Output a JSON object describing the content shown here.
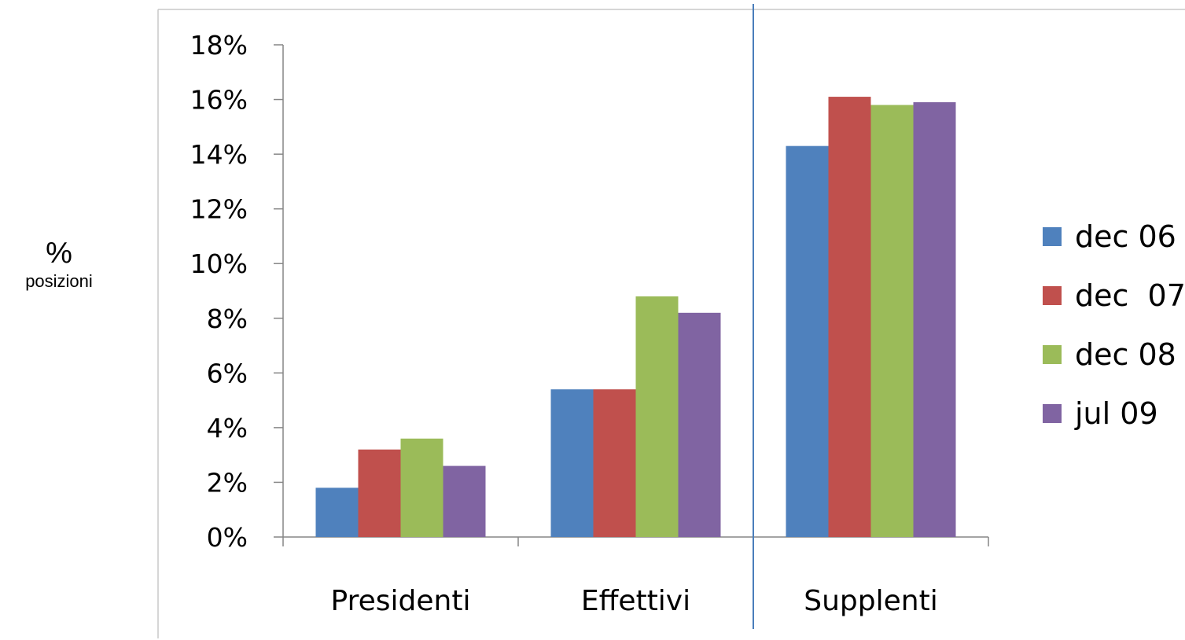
{
  "ylabel": {
    "main": "%",
    "sub": "posizioni"
  },
  "chart_data": {
    "type": "bar",
    "categories": [
      "Presidenti",
      "Effettivi",
      "Supplenti"
    ],
    "series": [
      {
        "name": "dec 06",
        "values": [
          1.8,
          5.4,
          14.3
        ]
      },
      {
        "name": "dec  07",
        "values": [
          3.2,
          5.4,
          16.1
        ]
      },
      {
        "name": "dec 08",
        "values": [
          3.6,
          8.8,
          15.8
        ]
      },
      {
        "name": "jul 09",
        "values": [
          2.6,
          8.2,
          15.9
        ]
      }
    ],
    "colors": [
      "#4F81BD",
      "#C0504D",
      "#9BBB59",
      "#8064A2"
    ],
    "ylim": [
      0,
      18
    ],
    "yticks": [
      0,
      2,
      4,
      6,
      8,
      10,
      12,
      14,
      16,
      18
    ],
    "ytick_labels": [
      "0%",
      "2%",
      "4%",
      "6%",
      "8%",
      "10%",
      "12%",
      "14%",
      "16%",
      "18%"
    ],
    "grid": false,
    "legend_position": "right",
    "divider_after_category": 1
  }
}
